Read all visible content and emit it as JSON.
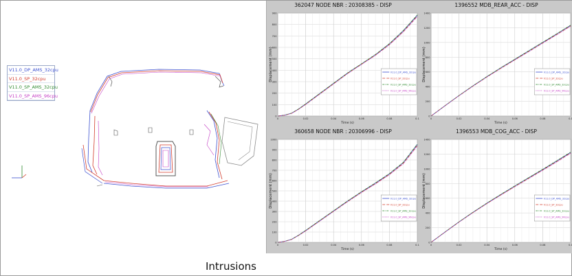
{
  "legend": {
    "items": [
      {
        "label": "V11.0_DP_AMS_32cpu",
        "color": "#3a4fd0"
      },
      {
        "label": "V11.0_SP_32cpu",
        "color": "#d23a2a"
      },
      {
        "label": "V11.0_SP_AMS_32cpu",
        "color": "#2f8a2f"
      },
      {
        "label": "V11.0_SP_AMS_96cpu",
        "color": "#c33bc3"
      }
    ]
  },
  "caption": "Intrusions",
  "chart_data": [
    {
      "type": "line",
      "title": "362047 NODE NBR : 20308385 - DISP",
      "xlabel": "Time (s)",
      "ylabel": "Displacement (mm)",
      "xlim": [
        0,
        0.1
      ],
      "ylim": [
        0,
        900
      ],
      "xticks": [
        "0",
        "0.02",
        "0.04",
        "0.06",
        "0.08",
        "0.1"
      ],
      "yticks": [
        "0",
        "100",
        "200",
        "300",
        "400",
        "500",
        "600",
        "700",
        "800",
        "900"
      ],
      "x": [
        0,
        0.005,
        0.01,
        0.015,
        0.02,
        0.03,
        0.04,
        0.05,
        0.06,
        0.07,
        0.08,
        0.09,
        0.1
      ],
      "series": [
        {
          "name": "V11.0_DP_AMS_32cpu",
          "values": [
            0,
            8,
            25,
            62,
            105,
            195,
            285,
            375,
            455,
            535,
            630,
            745,
            880
          ]
        },
        {
          "name": "V11.0_SP_32cpu",
          "values": [
            0,
            7,
            24,
            60,
            102,
            192,
            282,
            372,
            453,
            532,
            625,
            738,
            872
          ]
        },
        {
          "name": "V11.0_SP_AMS_32cpu",
          "values": [
            0,
            8,
            26,
            63,
            106,
            197,
            287,
            377,
            457,
            538,
            633,
            748,
            884
          ]
        },
        {
          "name": "V11.0_SP_AMS_96cpu",
          "values": [
            0,
            7,
            23,
            59,
            100,
            190,
            280,
            370,
            450,
            530,
            622,
            735,
            868
          ]
        }
      ],
      "legend_position": "right-middle",
      "grid": true
    },
    {
      "type": "line",
      "title": "1396552 MDB_REAR_ACC - DISP",
      "xlabel": "Time (s)",
      "ylabel": "Displacement (mm)",
      "xlim": [
        0,
        0.1
      ],
      "ylim": [
        0,
        1400
      ],
      "xticks": [
        "0",
        "0.02",
        "0.04",
        "0.06",
        "0.08",
        "0.1"
      ],
      "yticks": [
        "0",
        "200",
        "400",
        "600",
        "800",
        "1000",
        "1200",
        "1400"
      ],
      "x": [
        0,
        0.01,
        0.02,
        0.03,
        0.04,
        0.05,
        0.06,
        0.07,
        0.08,
        0.09,
        0.1
      ],
      "series": [
        {
          "name": "V11.0_DP_AMS_32cpu",
          "values": [
            0,
            140,
            278,
            410,
            535,
            655,
            770,
            885,
            1000,
            1115,
            1232
          ]
        },
        {
          "name": "V11.0_SP_32cpu",
          "values": [
            0,
            140,
            276,
            407,
            531,
            650,
            764,
            878,
            993,
            1108,
            1225
          ]
        },
        {
          "name": "V11.0_SP_AMS_32cpu",
          "values": [
            0,
            141,
            279,
            411,
            537,
            657,
            772,
            888,
            1003,
            1118,
            1236
          ]
        },
        {
          "name": "V11.0_SP_AMS_96cpu",
          "values": [
            0,
            139,
            275,
            405,
            529,
            647,
            761,
            875,
            990,
            1104,
            1220
          ]
        }
      ],
      "legend_position": "right-middle",
      "grid": true
    },
    {
      "type": "line",
      "title": "360658 NODE NBR : 20306996 - DISP",
      "xlabel": "Time (s)",
      "ylabel": "Displacement (mm)",
      "xlim": [
        0,
        0.1
      ],
      "ylim": [
        0,
        1000
      ],
      "xticks": [
        "0",
        "0.02",
        "0.04",
        "0.06",
        "0.08",
        "0.1"
      ],
      "yticks": [
        "0",
        "100",
        "200",
        "300",
        "400",
        "500",
        "600",
        "700",
        "800",
        "900",
        "1000"
      ],
      "x": [
        0,
        0.005,
        0.01,
        0.015,
        0.02,
        0.03,
        0.04,
        0.05,
        0.06,
        0.07,
        0.08,
        0.09,
        0.1
      ],
      "series": [
        {
          "name": "V11.0_DP_AMS_32cpu",
          "values": [
            0,
            10,
            30,
            70,
            115,
            210,
            305,
            400,
            490,
            575,
            665,
            775,
            950
          ]
        },
        {
          "name": "V11.0_SP_32cpu",
          "values": [
            0,
            9,
            29,
            68,
            112,
            207,
            302,
            396,
            486,
            570,
            660,
            768,
            940
          ]
        },
        {
          "name": "V11.0_SP_AMS_32cpu",
          "values": [
            0,
            10,
            31,
            71,
            116,
            212,
            307,
            402,
            492,
            578,
            668,
            778,
            955
          ]
        },
        {
          "name": "V11.0_SP_AMS_96cpu",
          "values": [
            0,
            9,
            28,
            67,
            110,
            205,
            300,
            394,
            483,
            567,
            656,
            763,
            935
          ]
        }
      ],
      "legend_position": "right-middle",
      "grid": true
    },
    {
      "type": "line",
      "title": "1396553 MDB_COG_ACC - DISP",
      "xlabel": "Time (s)",
      "ylabel": "Displacement (mm)",
      "xlim": [
        0,
        0.1
      ],
      "ylim": [
        0,
        1400
      ],
      "xticks": [
        "0",
        "0.02",
        "0.04",
        "0.06",
        "0.08",
        "0.1"
      ],
      "yticks": [
        "0",
        "200",
        "400",
        "600",
        "800",
        "1000",
        "1200",
        "1400"
      ],
      "x": [
        0,
        0.01,
        0.02,
        0.03,
        0.04,
        0.05,
        0.06,
        0.07,
        0.08,
        0.09,
        0.1
      ],
      "series": [
        {
          "name": "V11.0_DP_AMS_32cpu",
          "values": [
            0,
            140,
            278,
            408,
            532,
            650,
            765,
            878,
            990,
            1105,
            1222
          ]
        },
        {
          "name": "V11.0_SP_32cpu",
          "values": [
            0,
            139,
            276,
            405,
            528,
            645,
            759,
            871,
            983,
            1097,
            1214
          ]
        },
        {
          "name": "V11.0_SP_AMS_32cpu",
          "values": [
            0,
            141,
            279,
            410,
            534,
            653,
            768,
            881,
            994,
            1109,
            1227
          ]
        },
        {
          "name": "V11.0_SP_AMS_96cpu",
          "values": [
            0,
            138,
            274,
            403,
            526,
            642,
            756,
            867,
            979,
            1093,
            1210
          ]
        }
      ],
      "legend_position": "right-middle",
      "grid": true
    }
  ]
}
